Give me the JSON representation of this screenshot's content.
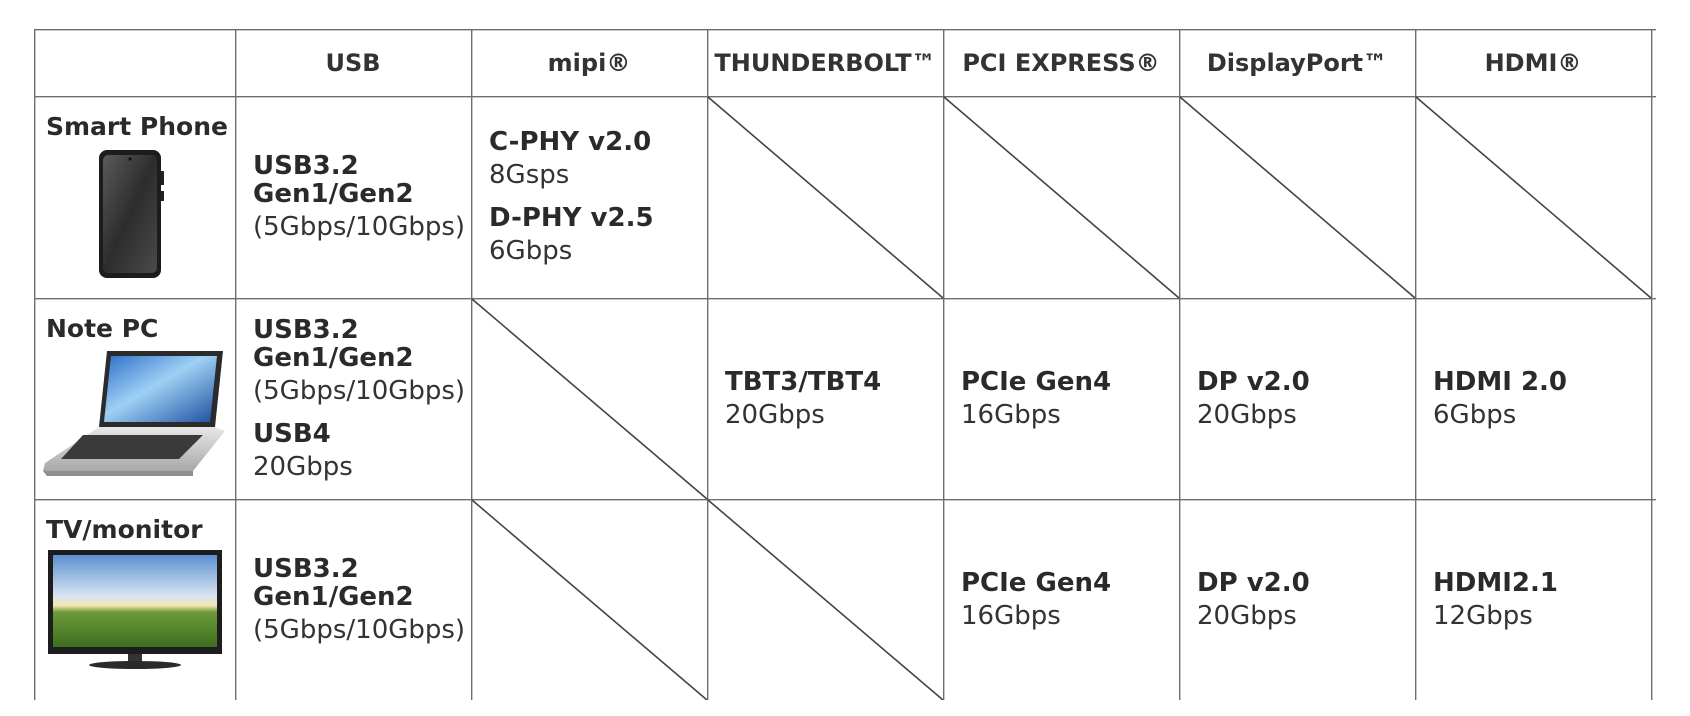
{
  "headers": [
    "USB",
    "mipi®",
    "THUNDERBOLT™",
    "PCI EXPRESS®",
    "DisplayPort™",
    "HDMI®"
  ],
  "rows": [
    {
      "device": "Smart Phone",
      "icon": "smartphone-icon",
      "cells": [
        [
          {
            "bold": "USB3.2",
            "regular": ""
          },
          {
            "bold": "Gen1/Gen2",
            "regular": "(5Gbps/10Gbps)"
          }
        ],
        [
          {
            "bold": "C-PHY v2.0",
            "regular": "8Gsps"
          },
          {
            "bold": "D-PHY v2.5",
            "regular": "6Gbps"
          }
        ],
        null,
        null,
        null,
        null
      ]
    },
    {
      "device": "Note PC",
      "icon": "laptop-icon",
      "cells": [
        [
          {
            "bold": "USB3.2",
            "regular": ""
          },
          {
            "bold": "Gen1/Gen2",
            "regular": "(5Gbps/10Gbps)"
          },
          {
            "bold": "USB4",
            "regular": "20Gbps"
          }
        ],
        null,
        [
          {
            "bold": "TBT3/TBT4",
            "regular": "20Gbps"
          }
        ],
        [
          {
            "bold": "PCIe Gen4",
            "regular": "16Gbps"
          }
        ],
        [
          {
            "bold": "DP v2.0",
            "regular": "20Gbps"
          }
        ],
        [
          {
            "bold": "HDMI 2.0",
            "regular": "6Gbps"
          }
        ]
      ]
    },
    {
      "device": "TV/monitor",
      "icon": "tv-monitor-icon",
      "cells": [
        [
          {
            "bold": "USB3.2",
            "regular": ""
          },
          {
            "bold": "Gen1/Gen2",
            "regular": "(5Gbps/10Gbps)"
          }
        ],
        null,
        null,
        [
          {
            "bold": "PCIe Gen4",
            "regular": "16Gbps"
          }
        ],
        [
          {
            "bold": "DP v2.0",
            "regular": "20Gbps"
          }
        ],
        [
          {
            "bold": "HDMI2.1",
            "regular": "12Gbps"
          }
        ]
      ]
    }
  ]
}
